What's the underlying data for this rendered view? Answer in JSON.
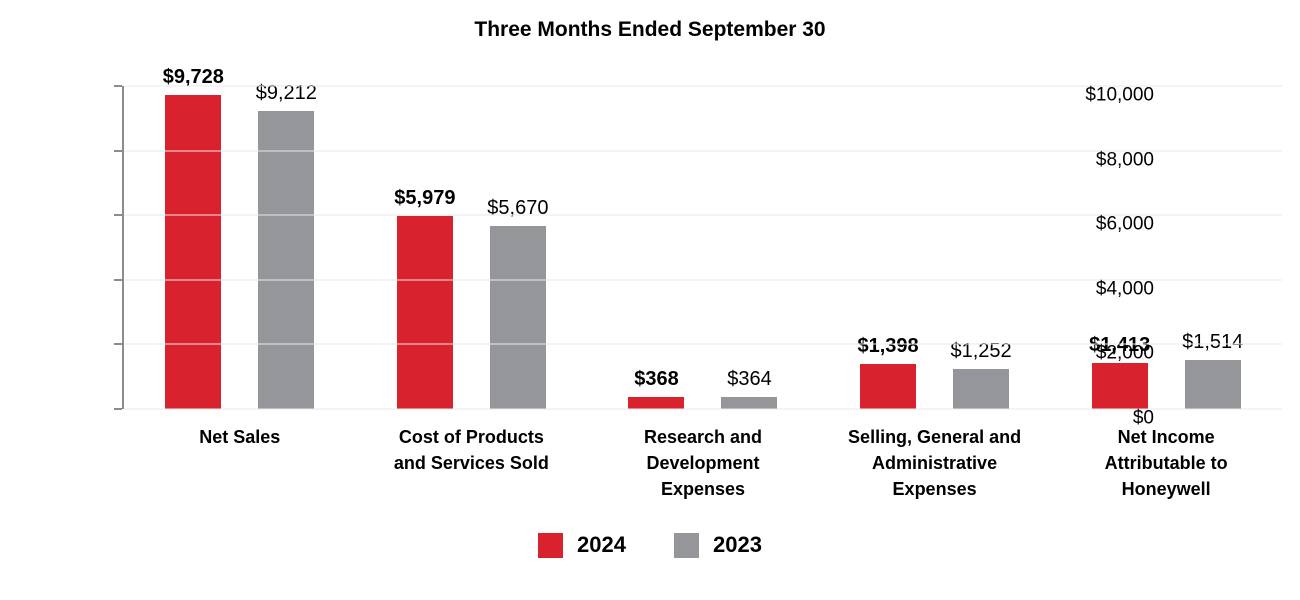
{
  "chart_data": {
    "type": "bar",
    "title": "Three Months Ended September 30",
    "categories": [
      "Net Sales",
      "Cost of Products and Services Sold",
      "Research and Development Expenses",
      "Selling, General and Administrative Expenses",
      "Net Income Attributable to Honeywell"
    ],
    "category_display_lines": [
      "Net Sales",
      "Cost of Products\nand Services Sold",
      "Research and\nDevelopment\nExpenses",
      "Selling, General and\nAdministrative\nExpenses",
      "Net Income\nAttributable to\nHoneywell"
    ],
    "series": [
      {
        "name": "2024",
        "color": "#d8232f",
        "values": [
          9728,
          5979,
          368,
          1398,
          1413
        ],
        "value_labels": [
          "$9,728",
          "$5,979",
          "$368",
          "$1,398",
          "$1,413"
        ],
        "label_weight": "bold"
      },
      {
        "name": "2023",
        "color": "#95969a",
        "values": [
          9212,
          5670,
          364,
          1252,
          1514
        ],
        "value_labels": [
          "$9,212",
          "$5,670",
          "$364",
          "$1,252",
          "$1,514"
        ],
        "label_weight": "normal"
      }
    ],
    "ylim": [
      0,
      10000
    ],
    "yticks": {
      "values": [
        0,
        2000,
        4000,
        6000,
        8000,
        10000
      ],
      "labels": [
        "$0",
        "$2,000",
        "$4,000",
        "$6,000",
        "$8,000",
        "$10,000"
      ]
    },
    "grid": true,
    "legend_position": "bottom",
    "colors": {
      "gridline": "#e8e8e8",
      "axis": "#8c8c8c",
      "text": "#000000",
      "background": "#ffffff"
    }
  }
}
